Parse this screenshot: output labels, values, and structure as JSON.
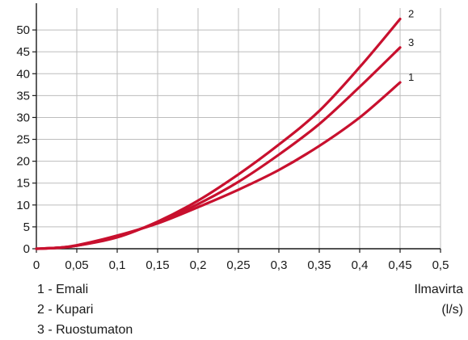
{
  "chart_data": {
    "type": "line",
    "title": "",
    "xlabel_line1": "Ilmavirta",
    "xlabel_line2": "(l/s)",
    "ylabel": "",
    "xlim": [
      0,
      0.5
    ],
    "ylim": [
      0,
      55
    ],
    "grid": true,
    "x_ticks": [
      "0",
      "0,05",
      "0,1",
      "0,15",
      "0,2",
      "0,25",
      "0,3",
      "0,35",
      "0,4",
      "0,45",
      "0,5"
    ],
    "x_tick_values": [
      0,
      0.05,
      0.1,
      0.15,
      0.2,
      0.25,
      0.3,
      0.35,
      0.4,
      0.45,
      0.5
    ],
    "y_ticks": [
      "0",
      "5",
      "10",
      "15",
      "20",
      "25",
      "30",
      "35",
      "40",
      "45",
      "50"
    ],
    "y_tick_values": [
      0,
      5,
      10,
      15,
      20,
      25,
      30,
      35,
      40,
      45,
      50
    ],
    "line_color": "#c8102e",
    "series": [
      {
        "curve_label": "1",
        "x": [
          0,
          0.025,
          0.05,
          0.1,
          0.15,
          0.2,
          0.25,
          0.3,
          0.35,
          0.4,
          0.45
        ],
        "values": [
          0,
          0.2,
          0.8,
          3.0,
          5.8,
          9.5,
          13.5,
          18.0,
          23.5,
          30.0,
          38.0
        ]
      },
      {
        "curve_label": "2",
        "x": [
          0,
          0.025,
          0.05,
          0.1,
          0.15,
          0.2,
          0.25,
          0.3,
          0.35,
          0.4,
          0.45
        ],
        "values": [
          0,
          0.2,
          0.7,
          2.6,
          6.2,
          11.0,
          17.0,
          23.8,
          31.5,
          41.5,
          52.5
        ]
      },
      {
        "curve_label": "3",
        "x": [
          0,
          0.025,
          0.05,
          0.1,
          0.15,
          0.2,
          0.25,
          0.3,
          0.35,
          0.4,
          0.45
        ],
        "values": [
          0,
          0.2,
          0.7,
          2.8,
          6.0,
          10.2,
          15.3,
          21.5,
          28.5,
          37.0,
          46.0
        ]
      }
    ],
    "legend": [
      "1 - Emali",
      "2 - Kupari",
      "3 - Ruostumaton"
    ]
  }
}
